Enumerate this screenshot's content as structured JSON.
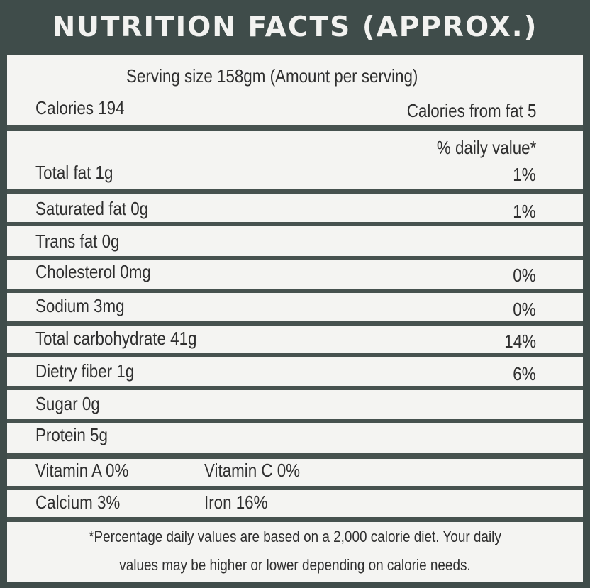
{
  "title": "NUTRITION FACTS (APPROX.)",
  "serving": "Serving size 158gm (Amount per serving)",
  "calories": "Calories 194",
  "calories_from_fat": "Calories from fat 5",
  "daily_value_header": "% daily value*",
  "rows": [
    {
      "label": "Total fat 1g",
      "dv": "1%"
    },
    {
      "label": "Saturated fat 0g",
      "dv": "1%"
    },
    {
      "label": "Trans fat 0g",
      "dv": ""
    },
    {
      "label": "Cholesterol 0mg",
      "dv": "0%"
    },
    {
      "label": "Sodium 3mg",
      "dv": "0%"
    },
    {
      "label": "Total carbohydrate 41g",
      "dv": "14%"
    },
    {
      "label": "Dietry fiber 1g",
      "dv": "6%"
    },
    {
      "label": "Sugar 0g",
      "dv": ""
    },
    {
      "label": "Protein 5g",
      "dv": ""
    }
  ],
  "vitamins": [
    {
      "left": "Vitamin A 0%",
      "right": "Vitamin C 0%"
    },
    {
      "left": "Calcium 3%",
      "right": "Iron 16%"
    }
  ],
  "footnote": [
    "*Percentage daily values are based on a 2,000 calorie diet. Your daily",
    "values may be higher or lower depending on calorie needs."
  ],
  "colors": {
    "header_bg": "#3f4c4a",
    "header_text": "#f2f2f0",
    "panel_bg": "#f4f4f2",
    "rule": "#46524f"
  }
}
